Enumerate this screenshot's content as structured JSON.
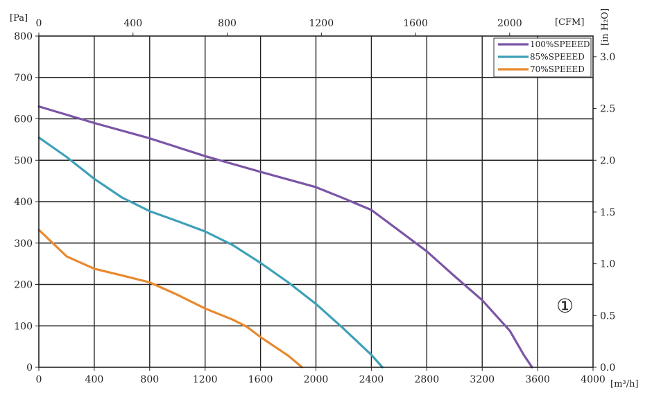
{
  "chart_data": {
    "type": "line",
    "units": {
      "left": "[Pa]",
      "top": "[CFM]",
      "bottom": "[m³/h]",
      "right": "[in H₂O]"
    },
    "x_ticks": [
      "0",
      "400",
      "800",
      "1200",
      "1600",
      "2000",
      "2400",
      "2800",
      "3200",
      "3600",
      "4000"
    ],
    "y_ticks": [
      "0",
      "100",
      "200",
      "300",
      "400",
      "500",
      "600",
      "700",
      "800"
    ],
    "top_ticks": [
      "0",
      "400",
      "800",
      "1200",
      "1600",
      "2000"
    ],
    "right_ticks": [
      "0.0",
      "0.5",
      "1.0",
      "1.5",
      "2.0",
      "2.5",
      "3.0"
    ],
    "xlim": [
      0,
      4000
    ],
    "ylim": [
      0,
      800
    ],
    "top_xlim_cfm": [
      0,
      2354
    ],
    "right_ylim_inh2o": [
      0,
      3.2
    ],
    "grid": true,
    "legend_position": "top-right",
    "marker_label": "①",
    "series": [
      {
        "name": "100%SPEEED",
        "color": "#7b55a6",
        "points": [
          [
            0,
            630
          ],
          [
            400,
            590
          ],
          [
            800,
            553
          ],
          [
            1200,
            510
          ],
          [
            1600,
            472
          ],
          [
            2000,
            435
          ],
          [
            2200,
            408
          ],
          [
            2400,
            380
          ],
          [
            2600,
            330
          ],
          [
            2800,
            280
          ],
          [
            3000,
            220
          ],
          [
            3200,
            162
          ],
          [
            3400,
            88
          ],
          [
            3500,
            30
          ],
          [
            3560,
            0
          ]
        ]
      },
      {
        "name": "85%SPEEED",
        "color": "#3ea0b8",
        "points": [
          [
            0,
            555
          ],
          [
            200,
            508
          ],
          [
            400,
            455
          ],
          [
            600,
            410
          ],
          [
            800,
            377
          ],
          [
            1000,
            353
          ],
          [
            1200,
            328
          ],
          [
            1400,
            295
          ],
          [
            1600,
            252
          ],
          [
            1800,
            205
          ],
          [
            2000,
            153
          ],
          [
            2200,
            93
          ],
          [
            2400,
            30
          ],
          [
            2480,
            0
          ]
        ]
      },
      {
        "name": "70%SPEEED",
        "color": "#e8892e",
        "points": [
          [
            0,
            332
          ],
          [
            100,
            300
          ],
          [
            200,
            268
          ],
          [
            400,
            238
          ],
          [
            600,
            222
          ],
          [
            800,
            205
          ],
          [
            1000,
            175
          ],
          [
            1200,
            142
          ],
          [
            1400,
            115
          ],
          [
            1500,
            98
          ],
          [
            1600,
            73
          ],
          [
            1800,
            28
          ],
          [
            1900,
            0
          ]
        ]
      }
    ]
  }
}
